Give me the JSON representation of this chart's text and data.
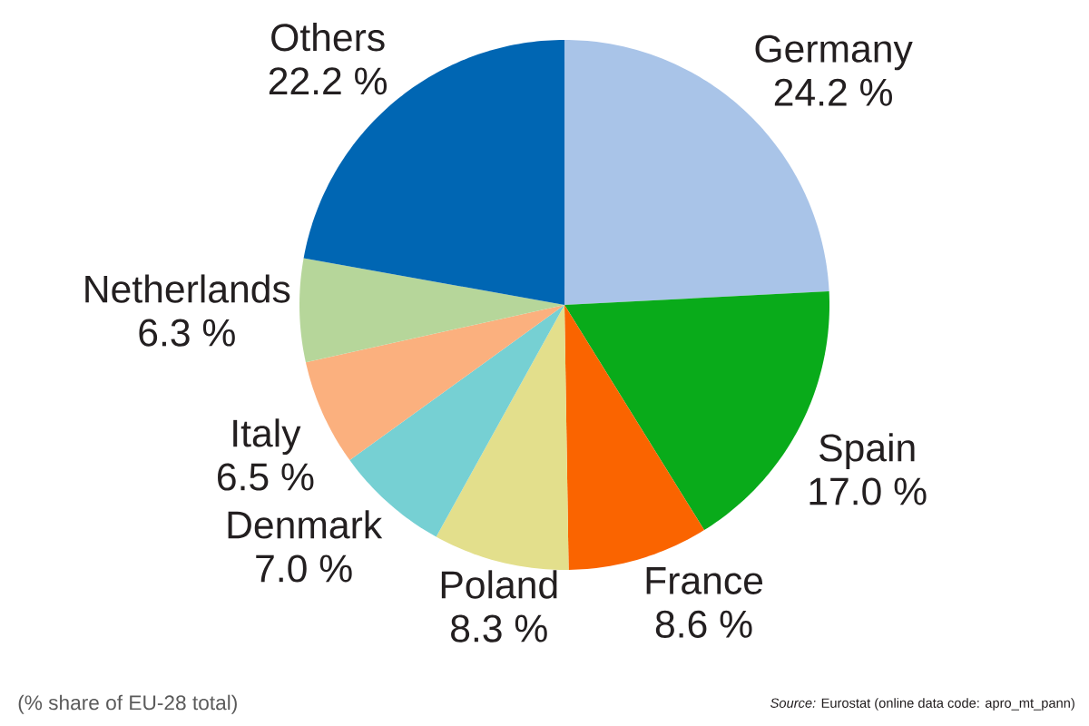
{
  "chart_data": {
    "type": "pie",
    "categories": [
      "Germany",
      "Spain",
      "France",
      "Poland",
      "Denmark",
      "Italy",
      "Netherlands",
      "Others"
    ],
    "values": [
      24.2,
      17.0,
      8.6,
      8.3,
      7.0,
      6.5,
      6.3,
      22.2
    ],
    "value_labels": [
      "24.2 %",
      "17.0 %",
      "8.6 %",
      "8.3 %",
      "7.0 %",
      "6.5 %",
      "6.3 %",
      "22.2 %"
    ],
    "colors": [
      "#a9c4e8",
      "#09ab1a",
      "#fa6400",
      "#e3df8c",
      "#76d0d3",
      "#fbb07e",
      "#b6d69a",
      "#0066b3"
    ],
    "annotations": [
      "(% share of EU-28 total)",
      "*Source:* Eurostat (online data code: apro_mt_pann)"
    ]
  }
}
